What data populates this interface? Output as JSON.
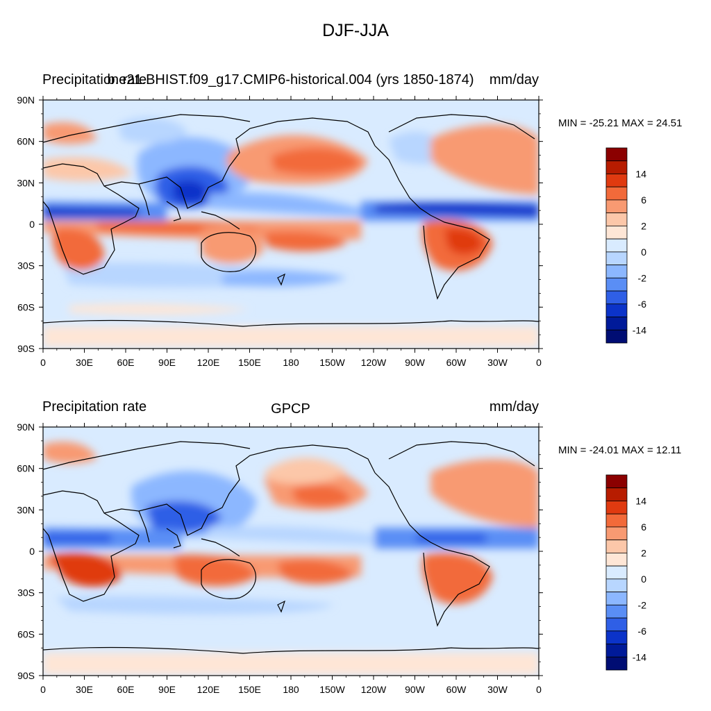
{
  "main_title": "DJF-JJA",
  "panels": [
    {
      "left_label": "Precipitation rate",
      "center_label": "b.e21.BHIST.f09_g17.CMIP6-historical.004 (yrs 1850-1874)",
      "right_label": "mm/day",
      "minmax": "MIN = -25.21 MAX =  24.51"
    },
    {
      "left_label": "Precipitation rate",
      "center_label": "GPCP",
      "right_label": "mm/day",
      "minmax": "MIN = -24.01 MAX =  12.11"
    }
  ],
  "lat_ticks": [
    "90N",
    "60N",
    "30N",
    "0",
    "30S",
    "60S",
    "90S"
  ],
  "lon_ticks": [
    "0",
    "30E",
    "60E",
    "90E",
    "120E",
    "150E",
    "180",
    "150W",
    "120W",
    "90W",
    "60W",
    "30W",
    "0"
  ],
  "colorbar": {
    "labels": [
      "14",
      "6",
      "2",
      "0",
      "-2",
      "-6",
      "-14"
    ],
    "colors": [
      "#8b0000",
      "#b71c00",
      "#e03a10",
      "#f26a3a",
      "#f89a72",
      "#fcc7a9",
      "#fee6d6",
      "#d9ebff",
      "#b8d6ff",
      "#8cb7ff",
      "#5a8ef5",
      "#2f5fe6",
      "#0b33c9",
      "#001a99",
      "#000d73"
    ]
  }
}
